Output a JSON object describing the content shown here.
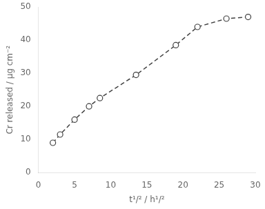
{
  "chart_data": {
    "type": "line",
    "x": [
      2.0,
      3.0,
      5.0,
      7.0,
      8.5,
      13.5,
      19.0,
      22.0,
      26.0,
      29.0
    ],
    "values": [
      9.0,
      11.5,
      16.0,
      20.0,
      22.5,
      29.5,
      38.5,
      44.0,
      46.5,
      47.0
    ],
    "xlabel": "t¹/² / h¹/²",
    "ylabel": "Cr released / μg cm⁻²",
    "xlim": [
      0,
      30
    ],
    "ylim": [
      0,
      50
    ],
    "xticks": [
      0,
      5,
      10,
      15,
      20,
      25,
      30
    ],
    "yticks": [
      0,
      10,
      20,
      30,
      40,
      50
    ],
    "color": "#404040",
    "line_style": "dashed",
    "marker": "circle",
    "grid": false
  }
}
